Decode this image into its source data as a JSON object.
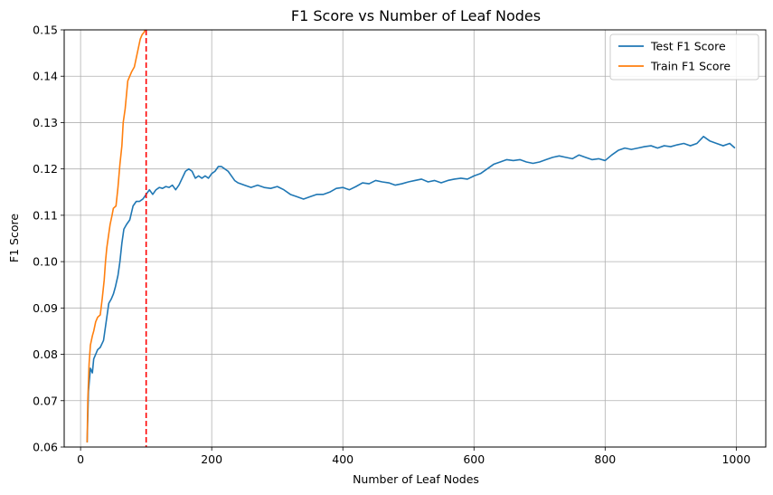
{
  "chart_data": {
    "type": "line",
    "title": "F1 Score vs Number of Leaf Nodes",
    "xlabel": "Number of Leaf Nodes",
    "ylabel": "F1 Score",
    "xlim": [
      -25,
      1045
    ],
    "ylim": [
      0.06,
      0.15
    ],
    "xticks": [
      0,
      200,
      400,
      600,
      800,
      1000
    ],
    "yticks": [
      0.06,
      0.07,
      0.08,
      0.09,
      0.1,
      0.11,
      0.12,
      0.13,
      0.14,
      0.15
    ],
    "ytick_labels": [
      "0.06",
      "0.07",
      "0.08",
      "0.09",
      "0.10",
      "0.11",
      "0.12",
      "0.13",
      "0.14",
      "0.15"
    ],
    "grid": true,
    "legend_position": "top-right",
    "vline": {
      "x": 100,
      "color": "#ff0000",
      "style": "dashed"
    },
    "series": [
      {
        "name": "Test F1 Score",
        "color": "#1f77b4",
        "points": [
          [
            10,
            0.061
          ],
          [
            12,
            0.072
          ],
          [
            15,
            0.077
          ],
          [
            18,
            0.076
          ],
          [
            20,
            0.079
          ],
          [
            23,
            0.08
          ],
          [
            26,
            0.081
          ],
          [
            30,
            0.0815
          ],
          [
            35,
            0.083
          ],
          [
            40,
            0.088
          ],
          [
            43,
            0.091
          ],
          [
            47,
            0.092
          ],
          [
            50,
            0.093
          ],
          [
            53,
            0.0945
          ],
          [
            57,
            0.097
          ],
          [
            60,
            0.1
          ],
          [
            63,
            0.104
          ],
          [
            66,
            0.107
          ],
          [
            70,
            0.108
          ],
          [
            75,
            0.109
          ],
          [
            80,
            0.112
          ],
          [
            85,
            0.113
          ],
          [
            90,
            0.113
          ],
          [
            95,
            0.1135
          ],
          [
            100,
            0.1145
          ],
          [
            105,
            0.1155
          ],
          [
            110,
            0.1145
          ],
          [
            115,
            0.1155
          ],
          [
            120,
            0.116
          ],
          [
            125,
            0.1158
          ],
          [
            130,
            0.1162
          ],
          [
            135,
            0.116
          ],
          [
            140,
            0.1165
          ],
          [
            145,
            0.1155
          ],
          [
            150,
            0.1165
          ],
          [
            155,
            0.118
          ],
          [
            160,
            0.1195
          ],
          [
            165,
            0.12
          ],
          [
            170,
            0.1195
          ],
          [
            175,
            0.118
          ],
          [
            180,
            0.1185
          ],
          [
            185,
            0.118
          ],
          [
            190,
            0.1185
          ],
          [
            195,
            0.118
          ],
          [
            200,
            0.119
          ],
          [
            205,
            0.1195
          ],
          [
            210,
            0.1205
          ],
          [
            215,
            0.1205
          ],
          [
            220,
            0.12
          ],
          [
            225,
            0.1195
          ],
          [
            230,
            0.1185
          ],
          [
            235,
            0.1175
          ],
          [
            240,
            0.117
          ],
          [
            250,
            0.1165
          ],
          [
            260,
            0.116
          ],
          [
            270,
            0.1165
          ],
          [
            280,
            0.116
          ],
          [
            290,
            0.1158
          ],
          [
            300,
            0.1162
          ],
          [
            310,
            0.1155
          ],
          [
            320,
            0.1145
          ],
          [
            330,
            0.114
          ],
          [
            340,
            0.1135
          ],
          [
            350,
            0.114
          ],
          [
            360,
            0.1145
          ],
          [
            370,
            0.1145
          ],
          [
            380,
            0.115
          ],
          [
            390,
            0.1158
          ],
          [
            400,
            0.116
          ],
          [
            410,
            0.1155
          ],
          [
            420,
            0.1162
          ],
          [
            430,
            0.117
          ],
          [
            440,
            0.1168
          ],
          [
            450,
            0.1175
          ],
          [
            460,
            0.1172
          ],
          [
            470,
            0.117
          ],
          [
            480,
            0.1165
          ],
          [
            490,
            0.1168
          ],
          [
            500,
            0.1172
          ],
          [
            510,
            0.1175
          ],
          [
            520,
            0.1178
          ],
          [
            530,
            0.1172
          ],
          [
            540,
            0.1175
          ],
          [
            550,
            0.117
          ],
          [
            560,
            0.1175
          ],
          [
            570,
            0.1178
          ],
          [
            580,
            0.118
          ],
          [
            590,
            0.1178
          ],
          [
            600,
            0.1185
          ],
          [
            610,
            0.119
          ],
          [
            620,
            0.12
          ],
          [
            630,
            0.121
          ],
          [
            640,
            0.1215
          ],
          [
            650,
            0.122
          ],
          [
            660,
            0.1218
          ],
          [
            670,
            0.122
          ],
          [
            680,
            0.1215
          ],
          [
            690,
            0.1212
          ],
          [
            700,
            0.1215
          ],
          [
            710,
            0.122
          ],
          [
            720,
            0.1225
          ],
          [
            730,
            0.1228
          ],
          [
            740,
            0.1225
          ],
          [
            750,
            0.1222
          ],
          [
            760,
            0.123
          ],
          [
            770,
            0.1225
          ],
          [
            780,
            0.122
          ],
          [
            790,
            0.1222
          ],
          [
            800,
            0.1218
          ],
          [
            810,
            0.123
          ],
          [
            820,
            0.124
          ],
          [
            830,
            0.1245
          ],
          [
            840,
            0.1242
          ],
          [
            850,
            0.1245
          ],
          [
            860,
            0.1248
          ],
          [
            870,
            0.125
          ],
          [
            880,
            0.1245
          ],
          [
            890,
            0.125
          ],
          [
            900,
            0.1248
          ],
          [
            910,
            0.1252
          ],
          [
            920,
            0.1255
          ],
          [
            930,
            0.125
          ],
          [
            940,
            0.1255
          ],
          [
            950,
            0.127
          ],
          [
            960,
            0.126
          ],
          [
            970,
            0.1255
          ],
          [
            980,
            0.125
          ],
          [
            990,
            0.1255
          ],
          [
            998,
            0.1245
          ]
        ]
      },
      {
        "name": "Train F1 Score",
        "color": "#ff7f0e",
        "points": [
          [
            10,
            0.061
          ],
          [
            11,
            0.07
          ],
          [
            13,
            0.078
          ],
          [
            15,
            0.082
          ],
          [
            18,
            0.084
          ],
          [
            20,
            0.085
          ],
          [
            23,
            0.087
          ],
          [
            26,
            0.088
          ],
          [
            30,
            0.0885
          ],
          [
            33,
            0.092
          ],
          [
            36,
            0.096
          ],
          [
            38,
            0.1
          ],
          [
            40,
            0.103
          ],
          [
            42,
            0.105
          ],
          [
            45,
            0.108
          ],
          [
            48,
            0.11
          ],
          [
            50,
            0.1115
          ],
          [
            54,
            0.112
          ],
          [
            57,
            0.116
          ],
          [
            60,
            0.121
          ],
          [
            63,
            0.125
          ],
          [
            65,
            0.13
          ],
          [
            68,
            0.133
          ],
          [
            70,
            0.136
          ],
          [
            72,
            0.139
          ],
          [
            75,
            0.14
          ],
          [
            78,
            0.141
          ],
          [
            82,
            0.142
          ],
          [
            85,
            0.144
          ],
          [
            88,
            0.146
          ],
          [
            91,
            0.148
          ],
          [
            94,
            0.149
          ],
          [
            97,
            0.1495
          ],
          [
            98,
            0.15
          ]
        ]
      }
    ]
  }
}
